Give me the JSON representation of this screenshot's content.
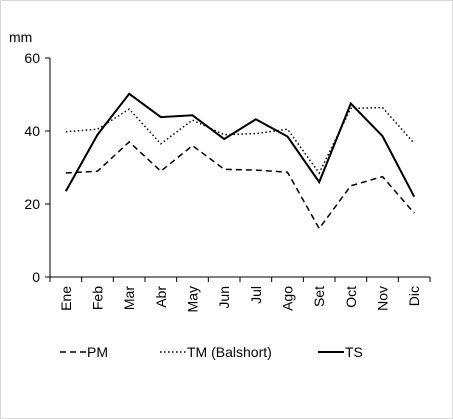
{
  "chart_data": {
    "type": "line",
    "title": "",
    "xlabel": "",
    "ylabel": "mm",
    "ylim": [
      0,
      60
    ],
    "yticks": [
      0,
      20,
      40,
      60
    ],
    "categories": [
      "Ene",
      "Feb",
      "Mar",
      "Abr",
      "May",
      "Jun",
      "Jul",
      "Ago",
      "Set",
      "Oct",
      "Nov",
      "Dic"
    ],
    "grid": false,
    "legend": "bottom",
    "series": [
      {
        "name": "PM",
        "dash": "dashed",
        "color": "#000000",
        "values": [
          28.5,
          29.0,
          37.0,
          29.0,
          36.0,
          29.5,
          29.3,
          28.7,
          13.3,
          25.0,
          27.5,
          17.5
        ]
      },
      {
        "name": "TM (Balshort)",
        "dash": "dotted",
        "color": "#000000",
        "values": [
          39.8,
          40.5,
          46.0,
          36.5,
          43.0,
          39.0,
          39.3,
          40.5,
          28.5,
          46.2,
          46.4,
          36.6
        ]
      },
      {
        "name": "TS",
        "dash": "solid",
        "color": "#000000",
        "values": [
          23.5,
          39.0,
          50.2,
          43.8,
          44.3,
          37.8,
          43.2,
          38.5,
          26.0,
          47.5,
          38.6,
          22.0
        ]
      }
    ]
  }
}
